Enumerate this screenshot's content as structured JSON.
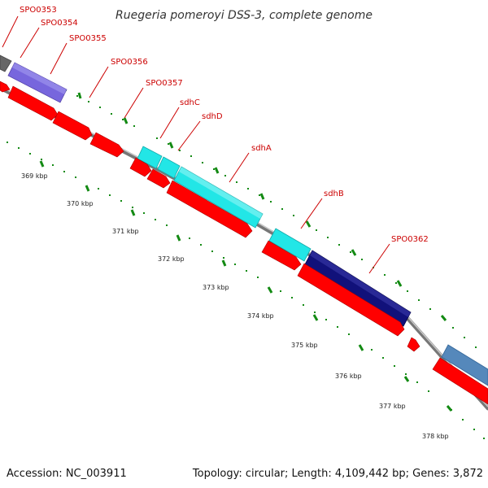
{
  "title": "Ruegeria pomeroyi DSS-3, complete genome",
  "footer": {
    "accession": "Accession: NC_003911",
    "stats": "Topology: circular; Length: 4,109,442 bp; Genes: 3,872"
  },
  "colors": {
    "backbone": "#888888",
    "cds": "#ff0000",
    "tick": "#138a13",
    "label": "#cc0000",
    "gray": "#666666",
    "purple": "#7766dd",
    "cyan": "#22e6e6",
    "navy": "#11117a",
    "steel": "#5588bb"
  },
  "gene_labels": [
    {
      "id": "spo0353",
      "text": "SPO0353"
    },
    {
      "id": "spo0354",
      "text": "SPO0354"
    },
    {
      "id": "spo0355",
      "text": "SPO0355"
    },
    {
      "id": "spo0356",
      "text": "SPO0356"
    },
    {
      "id": "spo0357",
      "text": "SPO0357"
    },
    {
      "id": "sdhc",
      "text": "sdhC"
    },
    {
      "id": "sdhd",
      "text": "sdhD"
    },
    {
      "id": "sdha",
      "text": "sdhA"
    },
    {
      "id": "sdhb",
      "text": "sdhB"
    },
    {
      "id": "spo0362",
      "text": "SPO0362"
    }
  ],
  "position_labels": [
    "369 kbp",
    "370 kbp",
    "371 kbp",
    "372 kbp",
    "373 kbp",
    "374 kbp",
    "375 kbp",
    "376 kbp",
    "377 kbp",
    "378 kbp"
  ]
}
